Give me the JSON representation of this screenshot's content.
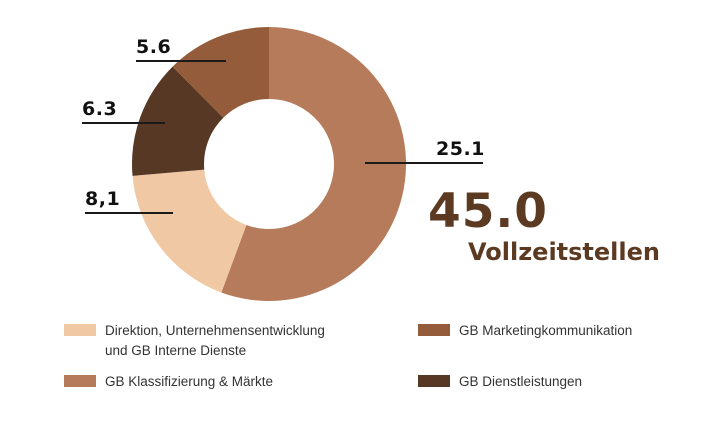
{
  "chart_data": {
    "type": "donut",
    "title": "",
    "unit": "Vollzeitstellen",
    "total": "45.0",
    "categories": [
      "GB Klassifizierung & Märkte",
      "Direktion, Unternehmensentwicklung und GB Interne Dienste",
      "GB Dienstleistungen",
      "GB Marketingkommunikation"
    ],
    "values": [
      25.1,
      8.1,
      6.3,
      5.6
    ],
    "value_labels": [
      "25.1",
      "8,1",
      "6.3",
      "5.6"
    ],
    "colors": [
      "#B57B5A",
      "#F0C8A4",
      "#573824",
      "#955C3C"
    ],
    "start_angle": "top, clockwise",
    "legend_position": "bottom"
  },
  "labels": {
    "klassifizierung": "25.1",
    "direktion": "8,1",
    "dienstleistungen": "6.3",
    "marketing": "5.6"
  },
  "summary": {
    "total": "45.0",
    "unit": "Vollzeitstellen"
  },
  "legend": [
    {
      "label": "Direktion, Unternehmensentwicklung\nund GB Interne Dienste",
      "color": "#F0C8A4"
    },
    {
      "label": "GB Marketingkommunikation",
      "color": "#955C3C"
    },
    {
      "label": "GB Klassifizierung & Märkte",
      "color": "#B57B5A"
    },
    {
      "label": "GB Dienstleistungen",
      "color": "#573824"
    }
  ]
}
